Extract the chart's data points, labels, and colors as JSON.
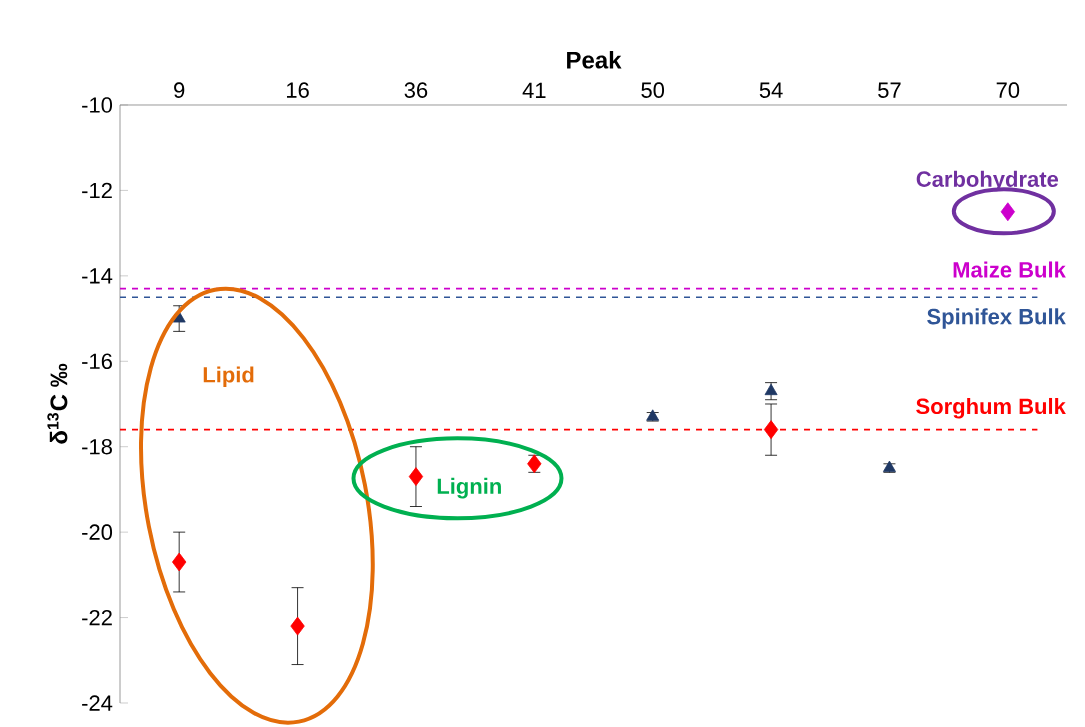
{
  "chart_data": {
    "type": "scatter",
    "xlabel": "Peak",
    "ylabel": "δ$^{13}$C ‰",
    "categories": [
      "9",
      "16",
      "36",
      "41",
      "50",
      "54",
      "57",
      "70"
    ],
    "series": [
      {
        "color": "#1f3864",
        "marker": "triangle",
        "values": [
          -15.0,
          null,
          null,
          null,
          -17.3,
          -16.7,
          -18.5,
          null
        ],
        "errors": [
          0.3,
          null,
          null,
          null,
          0.1,
          0.2,
          0.1,
          null
        ]
      },
      {
        "color": "#ff0000",
        "marker": "diamond",
        "values": [
          -20.7,
          -22.2,
          -18.7,
          -18.4,
          null,
          -17.6,
          null,
          null
        ],
        "errors": [
          0.7,
          0.9,
          0.7,
          0.2,
          null,
          0.6,
          null,
          null
        ]
      },
      {
        "color": "#cc00cc",
        "marker": "diamond",
        "values": [
          null,
          null,
          null,
          null,
          null,
          null,
          null,
          -12.5
        ]
      }
    ],
    "ylim": [
      -24,
      -10
    ],
    "yticks": [
      -24,
      -22,
      -20,
      -18,
      -16,
      -14,
      -12,
      -10
    ],
    "ref_lines": [
      {
        "axis": "y",
        "value": -14.3,
        "label": "Maize Bulk",
        "color": "#cc00cc",
        "line_style": "dashed"
      },
      {
        "axis": "y",
        "value": -14.5,
        "label": "Spinifex Bulk",
        "color": "#2f5597",
        "line_style": "dashed"
      },
      {
        "axis": "y",
        "value": -17.6,
        "label": "Sorghum Bulk",
        "color": "#ff0000",
        "line_style": "dashed"
      }
    ],
    "annotations": [
      "Lipid",
      "Lignin",
      "Carbohydrate"
    ],
    "grid": false
  }
}
